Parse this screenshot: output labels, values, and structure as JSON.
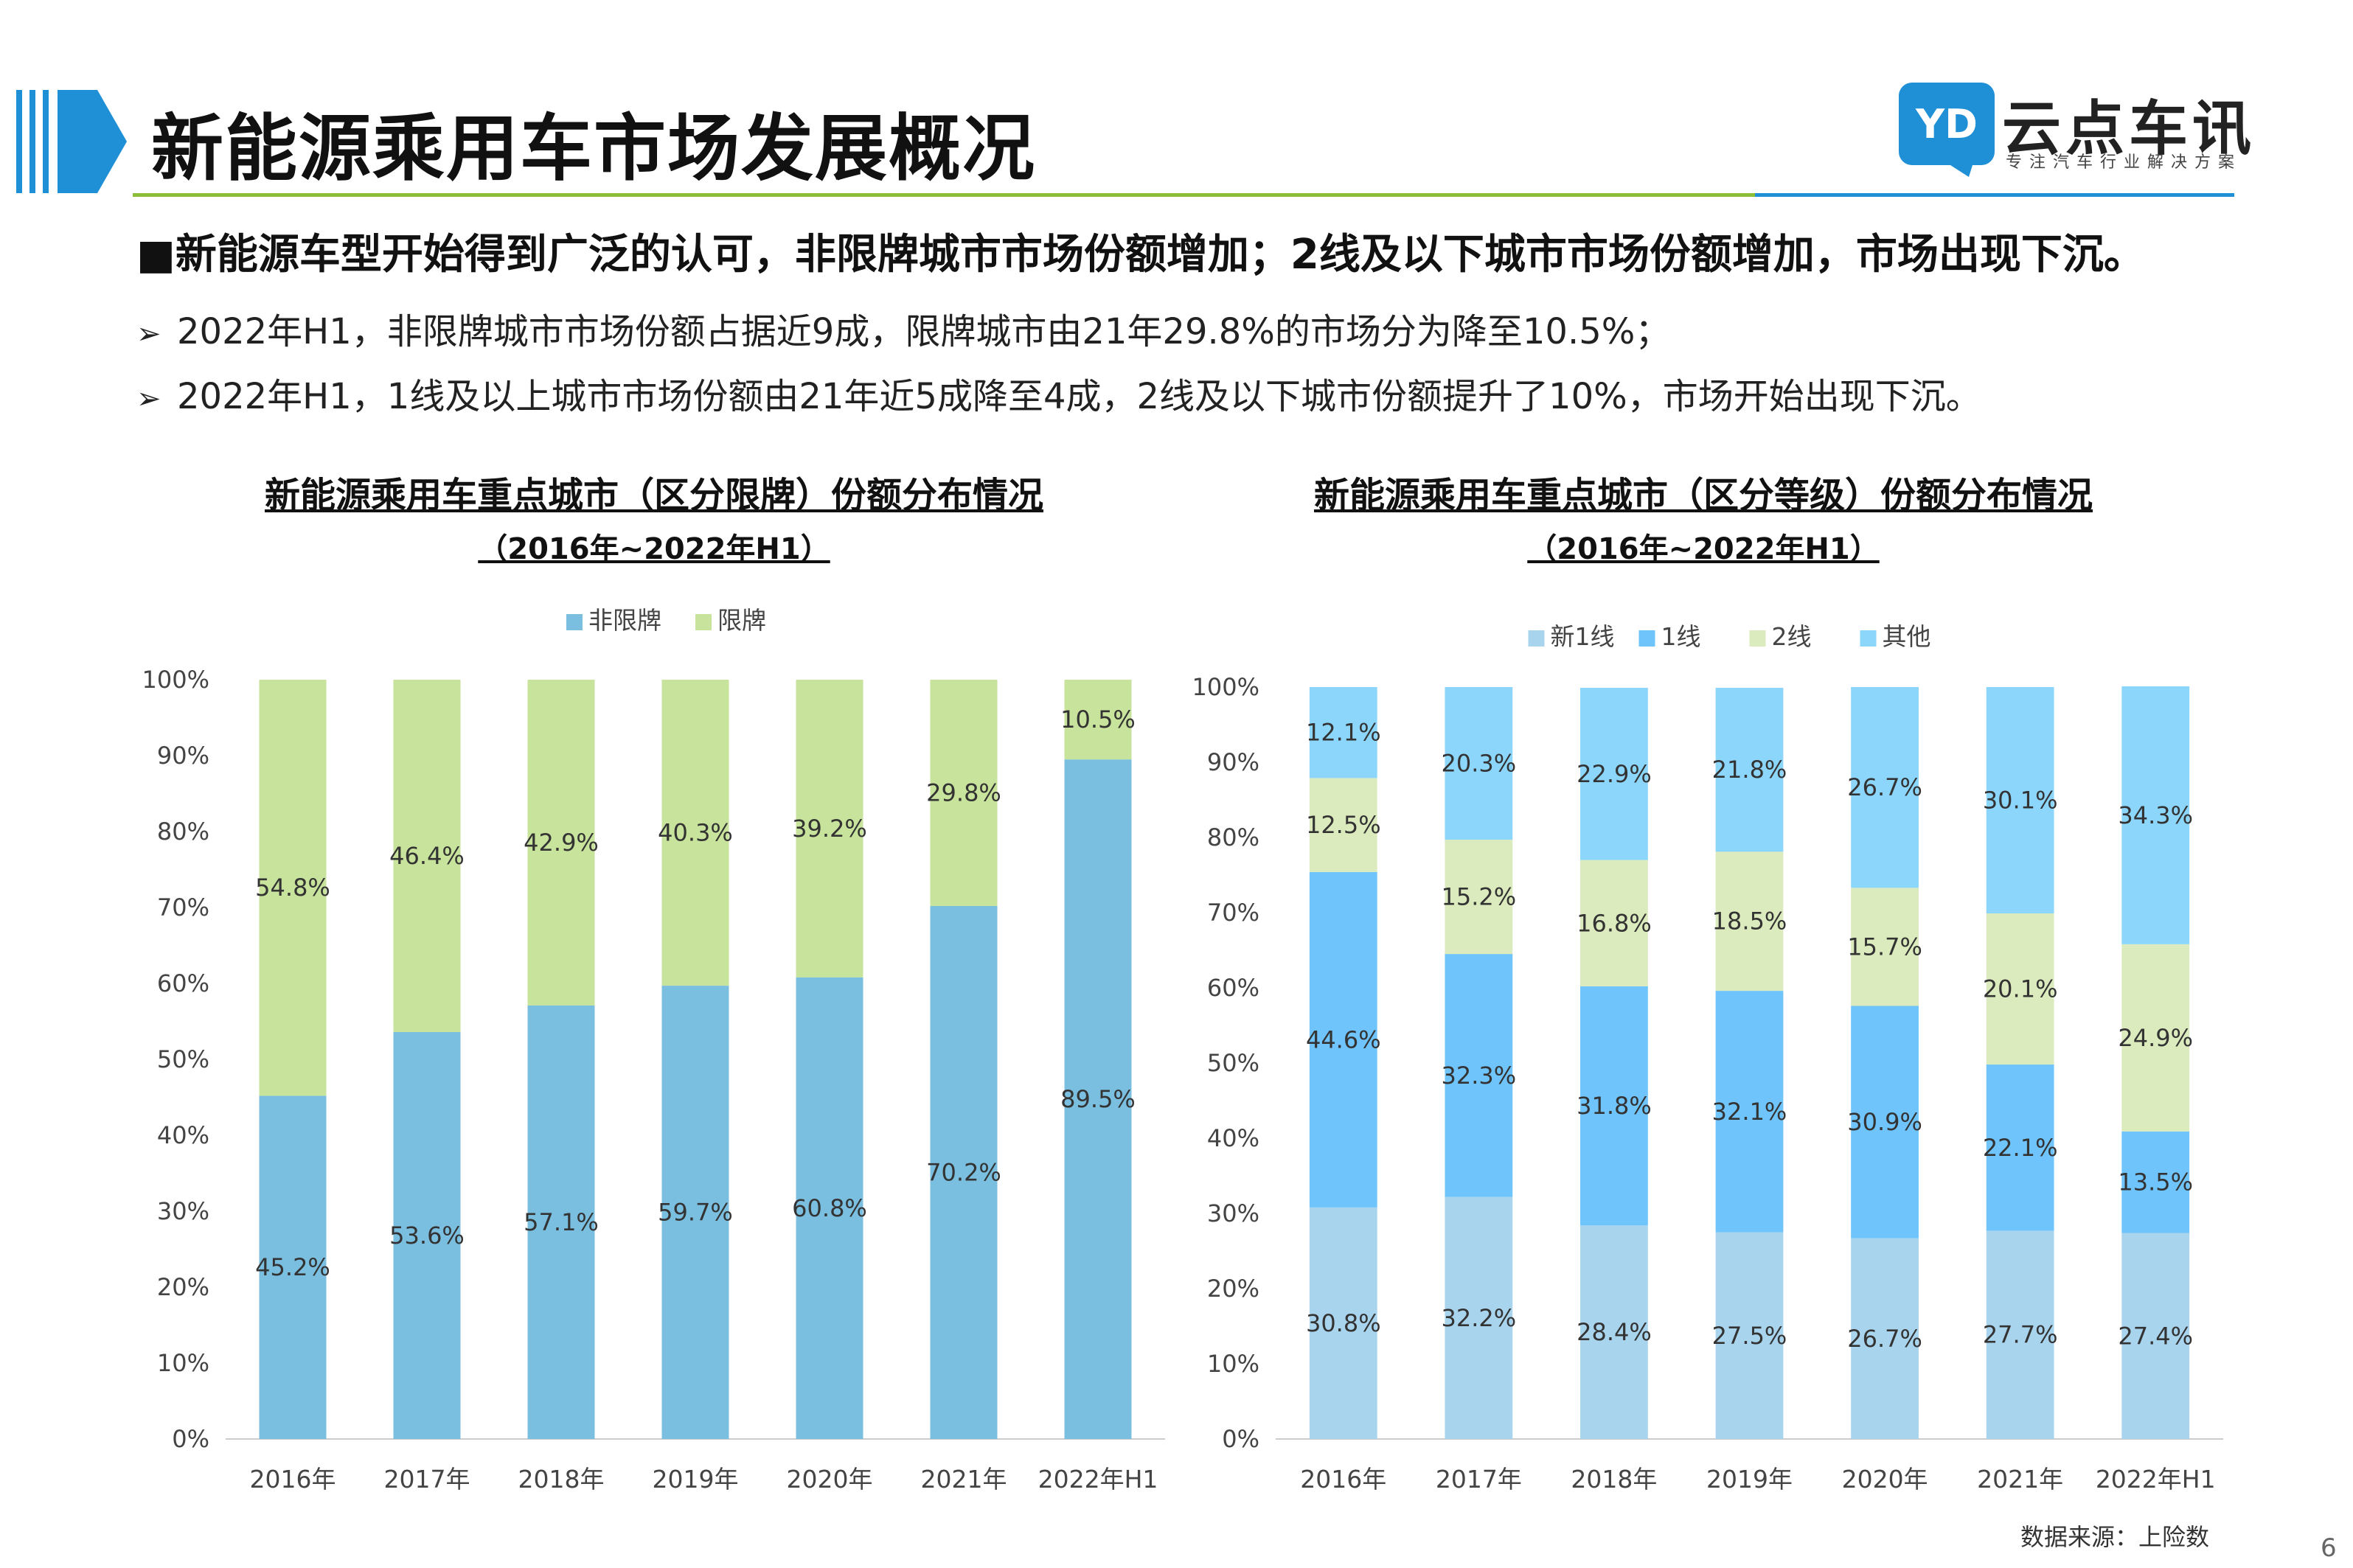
{
  "header": {
    "title": "新能源乘用车市场发展概况",
    "logo_text": "云点车讯",
    "logo_tagline": "专注汽车行业解决方案",
    "logo_mark": "YD"
  },
  "headline": "■新能源车型开始得到广泛的认可，非限牌城市市场份额增加；2线及以下城市市场份额增加，市场出现下沉。",
  "bullets": [
    "2022年H1，非限牌城市市场份额占据近9成，限牌城市由21年29.8%的市场分为降至10.5%；",
    "2022年H1，1线及以上城市市场份额由21年近5成降至4成，2线及以下城市份额提升了10%，市场开始出现下沉。"
  ],
  "bullet_marker": "➢",
  "footer": {
    "source": "数据来源：上险数",
    "page": "6"
  },
  "colors": {
    "accent_blue": "#1F8FD6",
    "accent_green": "#8DBE3A",
    "feixianpai": "#7BBFE0",
    "xianpai": "#C8E39B",
    "xin1": "#A9D4EE",
    "line1": "#6FC4FB",
    "line2": "#DBEBBD",
    "other": "#8CD6FC"
  },
  "chart_data": [
    {
      "type": "bar",
      "stacked": true,
      "title": "新能源乘用车重点城市（区分限牌）份额分布情况",
      "subtitle": "（2016年~2022年H1）",
      "categories": [
        "2016年",
        "2017年",
        "2018年",
        "2019年",
        "2020年",
        "2021年",
        "2022年H1"
      ],
      "series": [
        {
          "name": "非限牌",
          "color": "#7BBFE0",
          "values": [
            45.2,
            53.6,
            57.1,
            59.7,
            60.8,
            70.2,
            89.5
          ],
          "labels": [
            "45.2%",
            "53.6%",
            "57.1%",
            "59.7%",
            "60.8%",
            "70.2%",
            "89.5%"
          ]
        },
        {
          "name": "限牌",
          "color": "#C8E39B",
          "values": [
            54.8,
            46.4,
            42.9,
            40.3,
            39.2,
            29.8,
            10.5
          ],
          "labels": [
            "54.8%",
            "46.4%",
            "42.9%",
            "40.3%",
            "39.2%",
            "29.8%",
            "10.5%"
          ]
        }
      ],
      "yticks": [
        "0%",
        "10%",
        "20%",
        "30%",
        "40%",
        "50%",
        "60%",
        "70%",
        "80%",
        "90%",
        "100%"
      ],
      "ylim": [
        0,
        100
      ],
      "legend": "top"
    },
    {
      "type": "bar",
      "stacked": true,
      "title": "新能源乘用车重点城市（区分等级）份额分布情况",
      "subtitle": "（2016年~2022年H1）",
      "categories": [
        "2016年",
        "2017年",
        "2018年",
        "2019年",
        "2020年",
        "2021年",
        "2022年H1"
      ],
      "series": [
        {
          "name": "新1线",
          "color": "#A9D4EE",
          "values": [
            30.8,
            32.2,
            28.4,
            27.5,
            26.7,
            27.7,
            27.4
          ],
          "labels": [
            "30.8%",
            "32.2%",
            "28.4%",
            "27.5%",
            "26.7%",
            "27.7%",
            "27.4%"
          ]
        },
        {
          "name": "1线",
          "color": "#6FC4FB",
          "values": [
            44.6,
            32.3,
            31.8,
            32.1,
            30.9,
            22.1,
            13.5
          ],
          "labels": [
            "44.6%",
            "32.3%",
            "31.8%",
            "32.1%",
            "30.9%",
            "22.1%",
            "13.5%"
          ]
        },
        {
          "name": "2线",
          "color": "#DBEBBD",
          "values": [
            12.5,
            15.2,
            16.8,
            18.5,
            15.7,
            20.1,
            24.9
          ],
          "labels": [
            "12.5%",
            "15.2%",
            "16.8%",
            "18.5%",
            "15.7%",
            "20.1%",
            "24.9%"
          ]
        },
        {
          "name": "其他",
          "color": "#8CD6FC",
          "values": [
            12.1,
            20.3,
            22.9,
            21.8,
            26.7,
            30.1,
            34.3
          ],
          "labels": [
            "12.1%",
            "20.3%",
            "22.9%",
            "21.8%",
            "26.7%",
            "30.1%",
            "34.3%"
          ]
        }
      ],
      "yticks": [
        "0%",
        "10%",
        "20%",
        "30%",
        "40%",
        "50%",
        "60%",
        "70%",
        "80%",
        "90%",
        "100%"
      ],
      "ylim": [
        0,
        100
      ],
      "legend": "top"
    }
  ]
}
